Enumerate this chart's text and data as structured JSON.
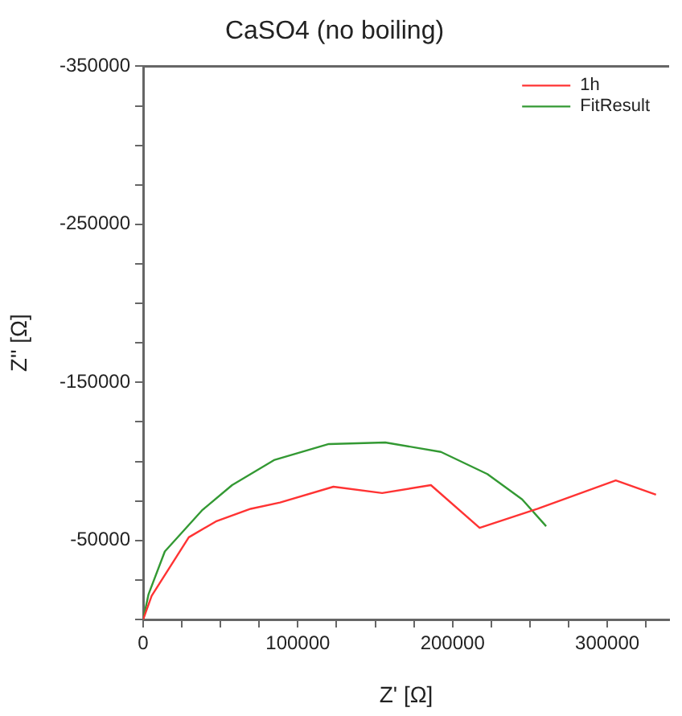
{
  "chart_data": {
    "type": "line",
    "title": "CaSO4 (no boiling)",
    "xlabel": "Z' [Ω]",
    "ylabel": "Z'' [Ω]",
    "series": [
      {
        "name": "1h",
        "color": "#ff3333",
        "x": [
          0,
          5500,
          29500,
          47000,
          69500,
          88500,
          123000,
          154500,
          186000,
          217500,
          255000,
          305500,
          331500
        ],
        "values": [
          0,
          -15000,
          -52000,
          -62000,
          -70000,
          -74000,
          -84000,
          -80000,
          -85000,
          -58000,
          -70000,
          -88000,
          -79000
        ]
      },
      {
        "name": "FitResult",
        "color": "#339933",
        "x": [
          0,
          3500,
          14000,
          38000,
          57500,
          85000,
          120000,
          156500,
          192500,
          222500,
          245000,
          260500
        ],
        "values": [
          0,
          -16000,
          -43000,
          -69000,
          -85000,
          -101000,
          -111000,
          -112000,
          -106000,
          -92000,
          -76000,
          -59000
        ]
      }
    ],
    "xlim": [
      0,
      340000
    ],
    "xticks": [
      0,
      {
        "value": 25000,
        "label": null
      },
      {
        "value": 50000,
        "label": null
      },
      {
        "value": 75000,
        "label": null
      },
      100000,
      {
        "value": 125000,
        "label": null
      },
      {
        "value": 150000,
        "label": null
      },
      {
        "value": 175000,
        "label": null
      },
      200000,
      {
        "value": 225000,
        "label": null
      },
      {
        "value": 250000,
        "label": null
      },
      {
        "value": 275000,
        "label": null
      },
      300000,
      {
        "value": 325000,
        "label": null
      }
    ],
    "ylim": [
      0,
      -350000
    ],
    "yticks": [
      {
        "value": 0,
        "label": null
      },
      {
        "value": -25000,
        "label": null
      },
      -50000,
      {
        "value": -75000,
        "label": null
      },
      {
        "value": -100000,
        "label": null
      },
      {
        "value": -125000,
        "label": null
      },
      -150000,
      {
        "value": -175000,
        "label": null
      },
      {
        "value": -200000,
        "label": null
      },
      {
        "value": -225000,
        "label": null
      },
      -250000,
      {
        "value": -275000,
        "label": null
      },
      {
        "value": -300000,
        "label": null
      },
      {
        "value": -325000,
        "label": null
      },
      -350000
    ],
    "grid": false,
    "legend": "top right",
    "marker": "none",
    "line_style": "solid"
  }
}
